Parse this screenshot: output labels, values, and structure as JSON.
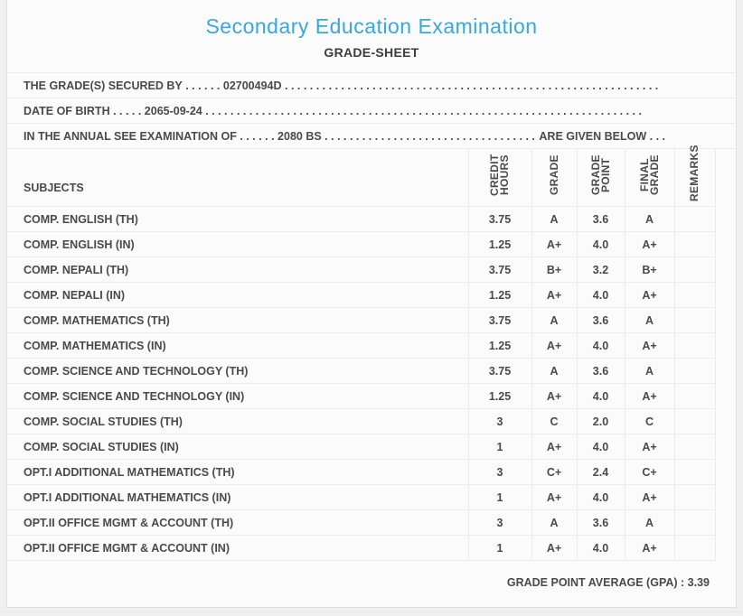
{
  "header": {
    "title": "Secondary Education Examination",
    "subtitle": "GRADE-SHEET"
  },
  "info_lines": [
    {
      "label": "THE GRADE(S) SECURED BY",
      "pre_dots": " . . . . . . ",
      "value": "02700494D",
      "fill_dots": " . . . . . . . . . . . . . . . . . . . . . . . . . . . . . . . . . . . . . . . . . . . . . . . . . . . . . . . . . . . . . . . . . . . . . . . . . . . . . . . . . . . . . . . . . .",
      "suffix": ""
    },
    {
      "label": "DATE OF BIRTH",
      "pre_dots": " . . . . . ",
      "value": "2065-09-24",
      "fill_dots": " . . . . . . . . . . . . . . . . . . . . . . . . . . . . . . . . . . . . . . . . . . . . . . . . . . . . . . . . . . . . . . . . . . . . . . . . . . . . . . . . . . . . . . . . . .",
      "suffix": ""
    },
    {
      "label": "IN THE ANNUAL SEE EXAMINATION OF",
      "pre_dots": " . . . . . . ",
      "value": "2080 BS",
      "fill_dots": " . . . . . . . . . . . . . . . . . . . . . . . . . . . . . . . . . . . . . . . . . . . . . . . . . . . . . . . . . . . . . . . . . . . . . . . . . . . . . . . . . . . . . . . . . .",
      "suffix": " ARE GIVEN BELOW . . ."
    }
  ],
  "table": {
    "headers": [
      "SUBJECTS",
      "CREDIT HOURS",
      "GRADE",
      "GRADE POINT",
      "FINAL GRADE",
      "REMARKS"
    ],
    "rows": [
      {
        "subject": "COMP. ENGLISH (TH)",
        "credit_hours": "3.75",
        "grade": "A",
        "grade_point": "3.6",
        "final_grade": "A",
        "remarks": ""
      },
      {
        "subject": "COMP. ENGLISH (IN)",
        "credit_hours": "1.25",
        "grade": "A+",
        "grade_point": "4.0",
        "final_grade": "A+",
        "remarks": ""
      },
      {
        "subject": "COMP. NEPALI (TH)",
        "credit_hours": "3.75",
        "grade": "B+",
        "grade_point": "3.2",
        "final_grade": "B+",
        "remarks": ""
      },
      {
        "subject": "COMP. NEPALI (IN)",
        "credit_hours": "1.25",
        "grade": "A+",
        "grade_point": "4.0",
        "final_grade": "A+",
        "remarks": ""
      },
      {
        "subject": "COMP. MATHEMATICS (TH)",
        "credit_hours": "3.75",
        "grade": "A",
        "grade_point": "3.6",
        "final_grade": "A",
        "remarks": ""
      },
      {
        "subject": "COMP. MATHEMATICS (IN)",
        "credit_hours": "1.25",
        "grade": "A+",
        "grade_point": "4.0",
        "final_grade": "A+",
        "remarks": ""
      },
      {
        "subject": "COMP. SCIENCE AND TECHNOLOGY (TH)",
        "credit_hours": "3.75",
        "grade": "A",
        "grade_point": "3.6",
        "final_grade": "A",
        "remarks": ""
      },
      {
        "subject": "COMP. SCIENCE AND TECHNOLOGY (IN)",
        "credit_hours": "1.25",
        "grade": "A+",
        "grade_point": "4.0",
        "final_grade": "A+",
        "remarks": ""
      },
      {
        "subject": "COMP. SOCIAL STUDIES (TH)",
        "credit_hours": "3",
        "grade": "C",
        "grade_point": "2.0",
        "final_grade": "C",
        "remarks": ""
      },
      {
        "subject": "COMP. SOCIAL STUDIES (IN)",
        "credit_hours": "1",
        "grade": "A+",
        "grade_point": "4.0",
        "final_grade": "A+",
        "remarks": ""
      },
      {
        "subject": "OPT.I ADDITIONAL MATHEMATICS (TH)",
        "credit_hours": "3",
        "grade": "C+",
        "grade_point": "2.4",
        "final_grade": "C+",
        "remarks": ""
      },
      {
        "subject": "OPT.I ADDITIONAL MATHEMATICS (IN)",
        "credit_hours": "1",
        "grade": "A+",
        "grade_point": "4.0",
        "final_grade": "A+",
        "remarks": ""
      },
      {
        "subject": "OPT.II OFFICE MGMT & ACCOUNT (TH)",
        "credit_hours": "3",
        "grade": "A",
        "grade_point": "3.6",
        "final_grade": "A",
        "remarks": ""
      },
      {
        "subject": "OPT.II OFFICE MGMT & ACCOUNT (IN)",
        "credit_hours": "1",
        "grade": "A+",
        "grade_point": "4.0",
        "final_grade": "A+",
        "remarks": ""
      }
    ]
  },
  "summary": {
    "gpa_label": "GRADE POINT AVERAGE (GPA)",
    "gpa_separator": " : ",
    "gpa_value": "3.39"
  },
  "colors": {
    "title_blue": "#39a8e0",
    "text_dark": "#4a4a4a",
    "border_light": "#ececec",
    "page_background": "#f0f0f0",
    "card_background": "#fbfbfb"
  }
}
